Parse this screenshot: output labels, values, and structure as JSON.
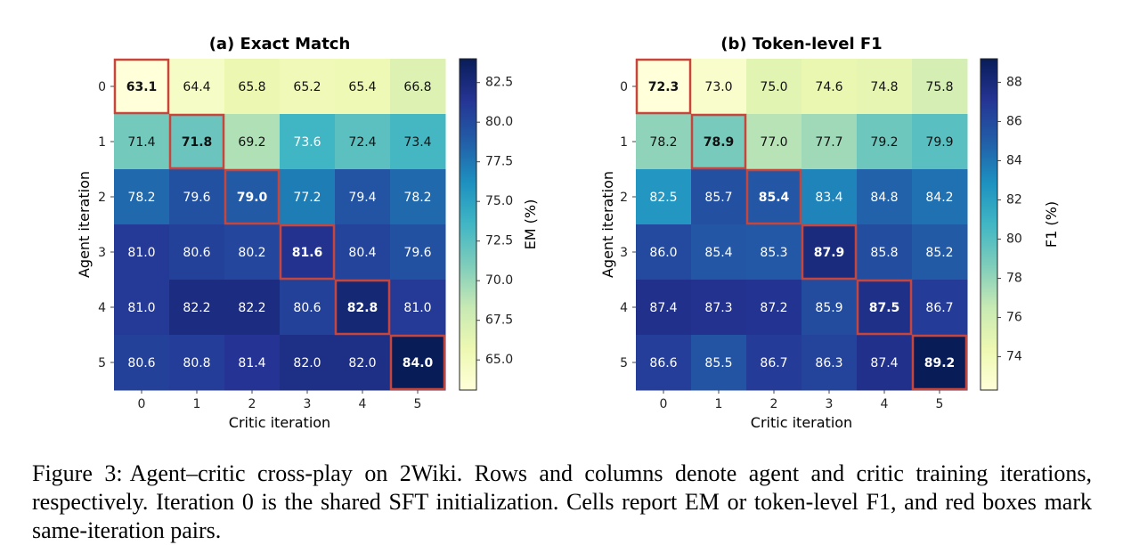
{
  "caption": {
    "label": "Figure 3:",
    "text": "Agent–critic cross-play on 2Wiki. Rows and columns denote agent and critic training iterations, respectively. Iteration 0 is the shared SFT initialization. Cells report EM or token-level F1, and red boxes mark same-iteration pairs."
  },
  "chart_data": [
    {
      "type": "heatmap",
      "title": "(a) Exact Match",
      "xlabel": "Critic iteration",
      "ylabel": "Agent iteration",
      "x_ticks": [
        "0",
        "1",
        "2",
        "3",
        "4",
        "5"
      ],
      "y_ticks": [
        "0",
        "1",
        "2",
        "3",
        "4",
        "5"
      ],
      "colorbar_label": "EM (%)",
      "colorbar_ticks": [
        65.0,
        67.5,
        70.0,
        72.5,
        75.0,
        77.5,
        80.0,
        82.5
      ],
      "colorbar_tick_labels": [
        "65.0",
        "67.5",
        "70.0",
        "72.5",
        "75.0",
        "77.5",
        "80.0",
        "82.5"
      ],
      "vmin": 63.1,
      "vmax": 84.0,
      "colormap": "YlGnBu",
      "highlight": "diagonal",
      "highlight_color": "#c8453c",
      "values": [
        [
          63.1,
          64.4,
          65.8,
          65.2,
          65.4,
          66.8
        ],
        [
          71.4,
          71.8,
          69.2,
          73.6,
          72.4,
          73.4
        ],
        [
          78.2,
          79.6,
          79.0,
          77.2,
          79.4,
          78.2
        ],
        [
          81.0,
          80.6,
          80.2,
          81.6,
          80.4,
          79.6
        ],
        [
          81.0,
          82.2,
          82.2,
          80.6,
          82.8,
          81.0
        ],
        [
          80.6,
          80.8,
          81.4,
          82.0,
          82.0,
          84.0
        ]
      ]
    },
    {
      "type": "heatmap",
      "title": "(b) Token-level F1",
      "xlabel": "Critic iteration",
      "ylabel": "Agent iteration",
      "x_ticks": [
        "0",
        "1",
        "2",
        "3",
        "4",
        "5"
      ],
      "y_ticks": [
        "0",
        "1",
        "2",
        "3",
        "4",
        "5"
      ],
      "colorbar_label": "F1 (%)",
      "colorbar_ticks": [
        74,
        76,
        78,
        80,
        82,
        84,
        86,
        88
      ],
      "colorbar_tick_labels": [
        "74",
        "76",
        "78",
        "80",
        "82",
        "84",
        "86",
        "88"
      ],
      "vmin": 72.3,
      "vmax": 89.2,
      "colormap": "YlGnBu",
      "highlight": "diagonal",
      "highlight_color": "#c8453c",
      "values": [
        [
          72.3,
          73.0,
          75.0,
          74.6,
          74.8,
          75.8
        ],
        [
          78.2,
          78.9,
          77.0,
          77.7,
          79.2,
          79.9
        ],
        [
          82.5,
          85.7,
          85.4,
          83.4,
          84.8,
          84.2
        ],
        [
          86.0,
          85.4,
          85.3,
          87.9,
          85.8,
          85.2
        ],
        [
          87.4,
          87.3,
          87.2,
          85.9,
          87.5,
          86.7
        ],
        [
          86.6,
          85.5,
          86.7,
          86.3,
          87.4,
          89.2
        ]
      ]
    }
  ]
}
